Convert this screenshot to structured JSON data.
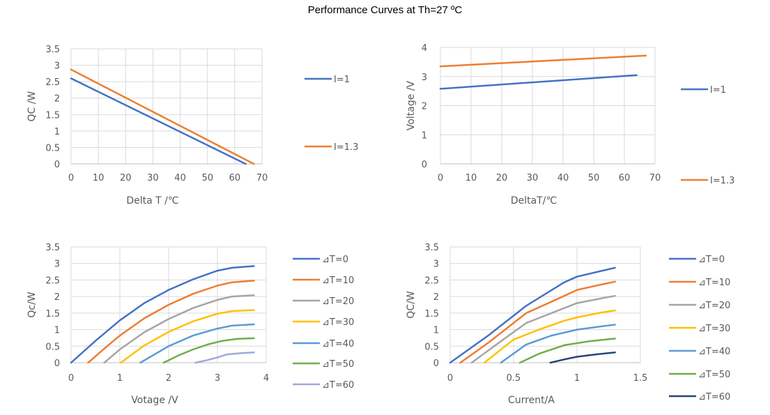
{
  "title": "Performance Curves at Th=27 ºC",
  "colors": {
    "blue": "#4472C4",
    "orange": "#ED7D31",
    "gray": "#A5A5A5",
    "gold": "#FFC000",
    "lightblue": "#5B9BD5",
    "green": "#70AD47",
    "periwinkle": "#9EA8DC",
    "navy": "#264478"
  },
  "chart_data": [
    {
      "type": "line",
      "xlabel": "Delta T /℃",
      "ylabel": "QC /W",
      "xlim": [
        0,
        70
      ],
      "ylim": [
        0,
        3.5
      ],
      "xticks": [
        0,
        10,
        20,
        30,
        40,
        50,
        60,
        70
      ],
      "yticks": [
        0,
        0.5,
        1,
        1.5,
        2,
        2.5,
        3,
        3.5
      ],
      "grid": true,
      "legend": "right",
      "series": [
        {
          "name": "I=1",
          "color": "#4472C4",
          "x": [
            0,
            64
          ],
          "y": [
            2.6,
            0
          ]
        },
        {
          "name": "I=1.3",
          "color": "#ED7D31",
          "x": [
            0,
            67
          ],
          "y": [
            2.87,
            0
          ]
        }
      ]
    },
    {
      "type": "line",
      "xlabel": "DeltaT/℃",
      "ylabel": "Voltage /V",
      "xlim": [
        0,
        70
      ],
      "ylim": [
        0,
        4
      ],
      "xticks": [
        0,
        10,
        20,
        30,
        40,
        50,
        60,
        70
      ],
      "yticks": [
        0,
        1,
        2,
        3,
        4
      ],
      "grid": true,
      "legend": "right",
      "series": [
        {
          "name": "I=1",
          "color": "#4472C4",
          "x": [
            0,
            64
          ],
          "y": [
            2.58,
            3.05
          ]
        },
        {
          "name": "I=1.3",
          "color": "#ED7D31",
          "x": [
            0,
            67
          ],
          "y": [
            3.35,
            3.72
          ]
        }
      ]
    },
    {
      "type": "line",
      "xlabel": "Votage /V",
      "ylabel": "Qc/W",
      "xlim": [
        0,
        4
      ],
      "ylim": [
        0,
        3.5
      ],
      "xticks": [
        0,
        1,
        2,
        3,
        4
      ],
      "yticks": [
        0,
        0.5,
        1,
        1.5,
        2,
        2.5,
        3,
        3.5
      ],
      "grid": true,
      "legend": "right",
      "series": [
        {
          "name": "⊿T=0",
          "color": "#4472C4",
          "x": [
            0,
            0.5,
            1,
            1.5,
            2,
            2.5,
            3,
            3.3,
            3.75
          ],
          "y": [
            0,
            0.66,
            1.28,
            1.8,
            2.2,
            2.52,
            2.78,
            2.87,
            2.92
          ]
        },
        {
          "name": "⊿T=10",
          "color": "#ED7D31",
          "x": [
            0.35,
            0.7,
            1,
            1.5,
            2,
            2.5,
            3,
            3.3,
            3.75
          ],
          "y": [
            0,
            0.45,
            0.82,
            1.34,
            1.75,
            2.08,
            2.33,
            2.43,
            2.48
          ]
        },
        {
          "name": "⊿T=20",
          "color": "#A5A5A5",
          "x": [
            0.68,
            1,
            1.5,
            2,
            2.5,
            3,
            3.3,
            3.75
          ],
          "y": [
            0,
            0.4,
            0.92,
            1.32,
            1.65,
            1.9,
            2.0,
            2.04
          ]
        },
        {
          "name": "⊿T=30",
          "color": "#FFC000",
          "x": [
            1.02,
            1.5,
            2,
            2.5,
            3,
            3.3,
            3.75
          ],
          "y": [
            0,
            0.52,
            0.93,
            1.25,
            1.48,
            1.56,
            1.59
          ]
        },
        {
          "name": "⊿T=40",
          "color": "#5B9BD5",
          "x": [
            1.42,
            2,
            2.5,
            3,
            3.3,
            3.75
          ],
          "y": [
            0,
            0.5,
            0.82,
            1.03,
            1.12,
            1.16
          ]
        },
        {
          "name": "⊿T=50",
          "color": "#70AD47",
          "x": [
            1.9,
            2.2,
            2.5,
            2.8,
            3.1,
            3.4,
            3.75
          ],
          "y": [
            0,
            0.22,
            0.4,
            0.55,
            0.66,
            0.72,
            0.74
          ]
        },
        {
          "name": "⊿T=60",
          "color": "#9EA8DC",
          "x": [
            2.55,
            2.8,
            3.0,
            3.2,
            3.5,
            3.75
          ],
          "y": [
            0,
            0.08,
            0.16,
            0.25,
            0.29,
            0.31
          ]
        }
      ]
    },
    {
      "type": "line",
      "xlabel": "Current/A",
      "ylabel": "QC/W",
      "xlim": [
        0,
        1.5
      ],
      "ylim": [
        0,
        3.5
      ],
      "xticks": [
        0,
        0.5,
        1,
        1.5
      ],
      "yticks": [
        0,
        0.5,
        1,
        1.5,
        2,
        2.5,
        3,
        3.5
      ],
      "grid": true,
      "legend": "right",
      "series": [
        {
          "name": "⊿T=0",
          "color": "#4472C4",
          "x": [
            0,
            0.3,
            0.6,
            0.9,
            1.0,
            1.2,
            1.3
          ],
          "y": [
            0,
            0.82,
            1.72,
            2.43,
            2.6,
            2.78,
            2.87
          ]
        },
        {
          "name": "⊿T=10",
          "color": "#ED7D31",
          "x": [
            0.08,
            0.3,
            0.6,
            0.9,
            1.0,
            1.2,
            1.3
          ],
          "y": [
            0,
            0.6,
            1.5,
            2.02,
            2.2,
            2.37,
            2.45
          ]
        },
        {
          "name": "⊿T=20",
          "color": "#A5A5A5",
          "x": [
            0.17,
            0.4,
            0.6,
            0.9,
            1.0,
            1.2,
            1.3
          ],
          "y": [
            0,
            0.65,
            1.2,
            1.65,
            1.8,
            1.95,
            2.02
          ]
        },
        {
          "name": "⊿T=30",
          "color": "#FFC000",
          "x": [
            0.27,
            0.5,
            0.7,
            0.9,
            1.0,
            1.2,
            1.3
          ],
          "y": [
            0,
            0.7,
            1.0,
            1.27,
            1.37,
            1.52,
            1.58
          ]
        },
        {
          "name": "⊿T=40",
          "color": "#5B9BD5",
          "x": [
            0.4,
            0.6,
            0.8,
            1.0,
            1.2,
            1.3
          ],
          "y": [
            0,
            0.55,
            0.82,
            1.0,
            1.1,
            1.15
          ]
        },
        {
          "name": "⊿T=50",
          "color": "#70AD47",
          "x": [
            0.55,
            0.7,
            0.9,
            1.1,
            1.3
          ],
          "y": [
            0,
            0.27,
            0.53,
            0.65,
            0.73
          ]
        },
        {
          "name": "⊿T=60",
          "color": "#264478",
          "x": [
            0.79,
            0.9,
            1.0,
            1.15,
            1.3
          ],
          "y": [
            0,
            0.1,
            0.18,
            0.25,
            0.31
          ]
        }
      ]
    }
  ]
}
